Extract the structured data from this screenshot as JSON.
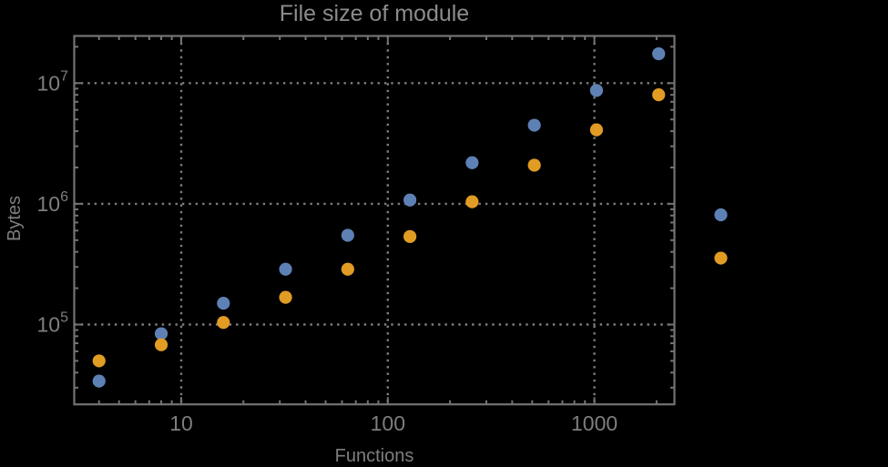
{
  "chart_data": {
    "type": "scatter",
    "title": "File size of module",
    "xlabel": "Functions",
    "ylabel": "Bytes",
    "x_scale": "log",
    "y_scale": "log",
    "xlim": [
      3,
      2450
    ],
    "ylim": [
      21800,
      25100000
    ],
    "grid": "dotted lines at decade ticks, all four frame edges with log minor ticks",
    "legend": "none",
    "x_major_ticks": [
      10,
      100,
      1000
    ],
    "x_tick_labels": [
      "10",
      "100",
      "1000"
    ],
    "y_major_tick_exponents": [
      5,
      6,
      7
    ],
    "y_tick_base": "10",
    "series": [
      {
        "name": "blue",
        "color": "#5E81B5",
        "points": [
          [
            4,
            34000
          ],
          [
            8,
            84000
          ],
          [
            16,
            150000
          ],
          [
            32,
            287000
          ],
          [
            64,
            549000
          ],
          [
            128,
            1075000
          ],
          [
            256,
            2190000
          ],
          [
            512,
            4480000
          ],
          [
            1024,
            8700000
          ],
          [
            2048,
            17500000
          ],
          [
            4096,
            810000
          ]
        ]
      },
      {
        "name": "orange",
        "color": "#E19C24",
        "points": [
          [
            4,
            50000
          ],
          [
            8,
            68000
          ],
          [
            16,
            104000
          ],
          [
            32,
            168000
          ],
          [
            64,
            287000
          ],
          [
            128,
            536000
          ],
          [
            256,
            1040000
          ],
          [
            512,
            2090000
          ],
          [
            1024,
            4100000
          ],
          [
            2048,
            8000000
          ],
          [
            4096,
            355000
          ]
        ]
      }
    ],
    "colors": {
      "background": "#000000",
      "frame": "#737373",
      "grid": "#7d7d7d",
      "tick_label": "#7e7e7e",
      "axis_label": "#7e7e7e",
      "title": "#8c8c8c"
    }
  }
}
